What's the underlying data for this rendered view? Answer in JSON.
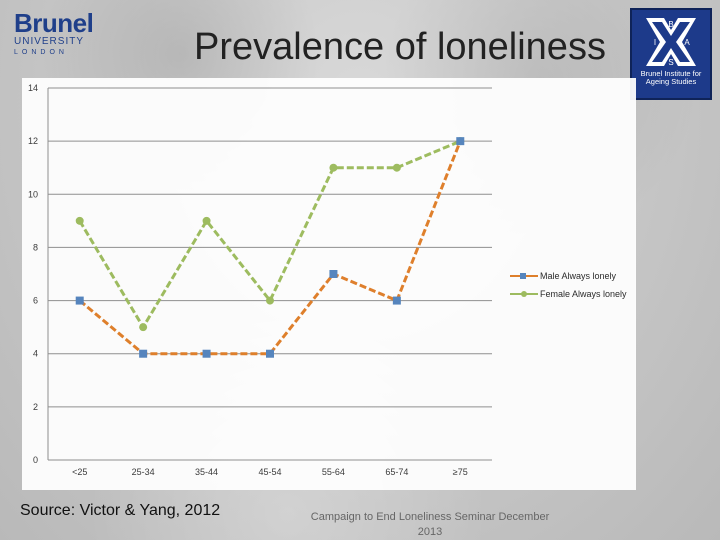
{
  "header": {
    "logo_left": {
      "brand": "Brunel",
      "line1": "UNIVERSITY",
      "line2": "LONDON"
    },
    "title": "Prevalence of loneliness",
    "logo_right": {
      "letters": "BIAS",
      "caption": "Brunel Institute for Ageing Studies"
    }
  },
  "chart_data": {
    "type": "line",
    "title": "",
    "xlabel": "",
    "ylabel": "",
    "categories": [
      "<25",
      "25-34",
      "35-44",
      "45-54",
      "55-64",
      "65-74",
      "≥75"
    ],
    "ylim": [
      0,
      14
    ],
    "yticks": [
      0,
      2,
      4,
      6,
      8,
      10,
      12,
      14
    ],
    "grid": true,
    "legend": "right",
    "series": [
      {
        "name": "Male Always lonely",
        "values": [
          6,
          4,
          4,
          4,
          7,
          6,
          12
        ],
        "color": "#e07b22",
        "marker": "square",
        "marker_color": "#4f81bd"
      },
      {
        "name": "Female Always lonely",
        "values": [
          9,
          5,
          9,
          6,
          11,
          11,
          12
        ],
        "color": "#9bbb59",
        "marker": "circle",
        "marker_color": "#9bbb59"
      }
    ]
  },
  "footer": {
    "source": "Source: Victor & Yang, 2012",
    "event_line1": "Campaign to End Loneliness Seminar December",
    "event_line2": "2013"
  }
}
